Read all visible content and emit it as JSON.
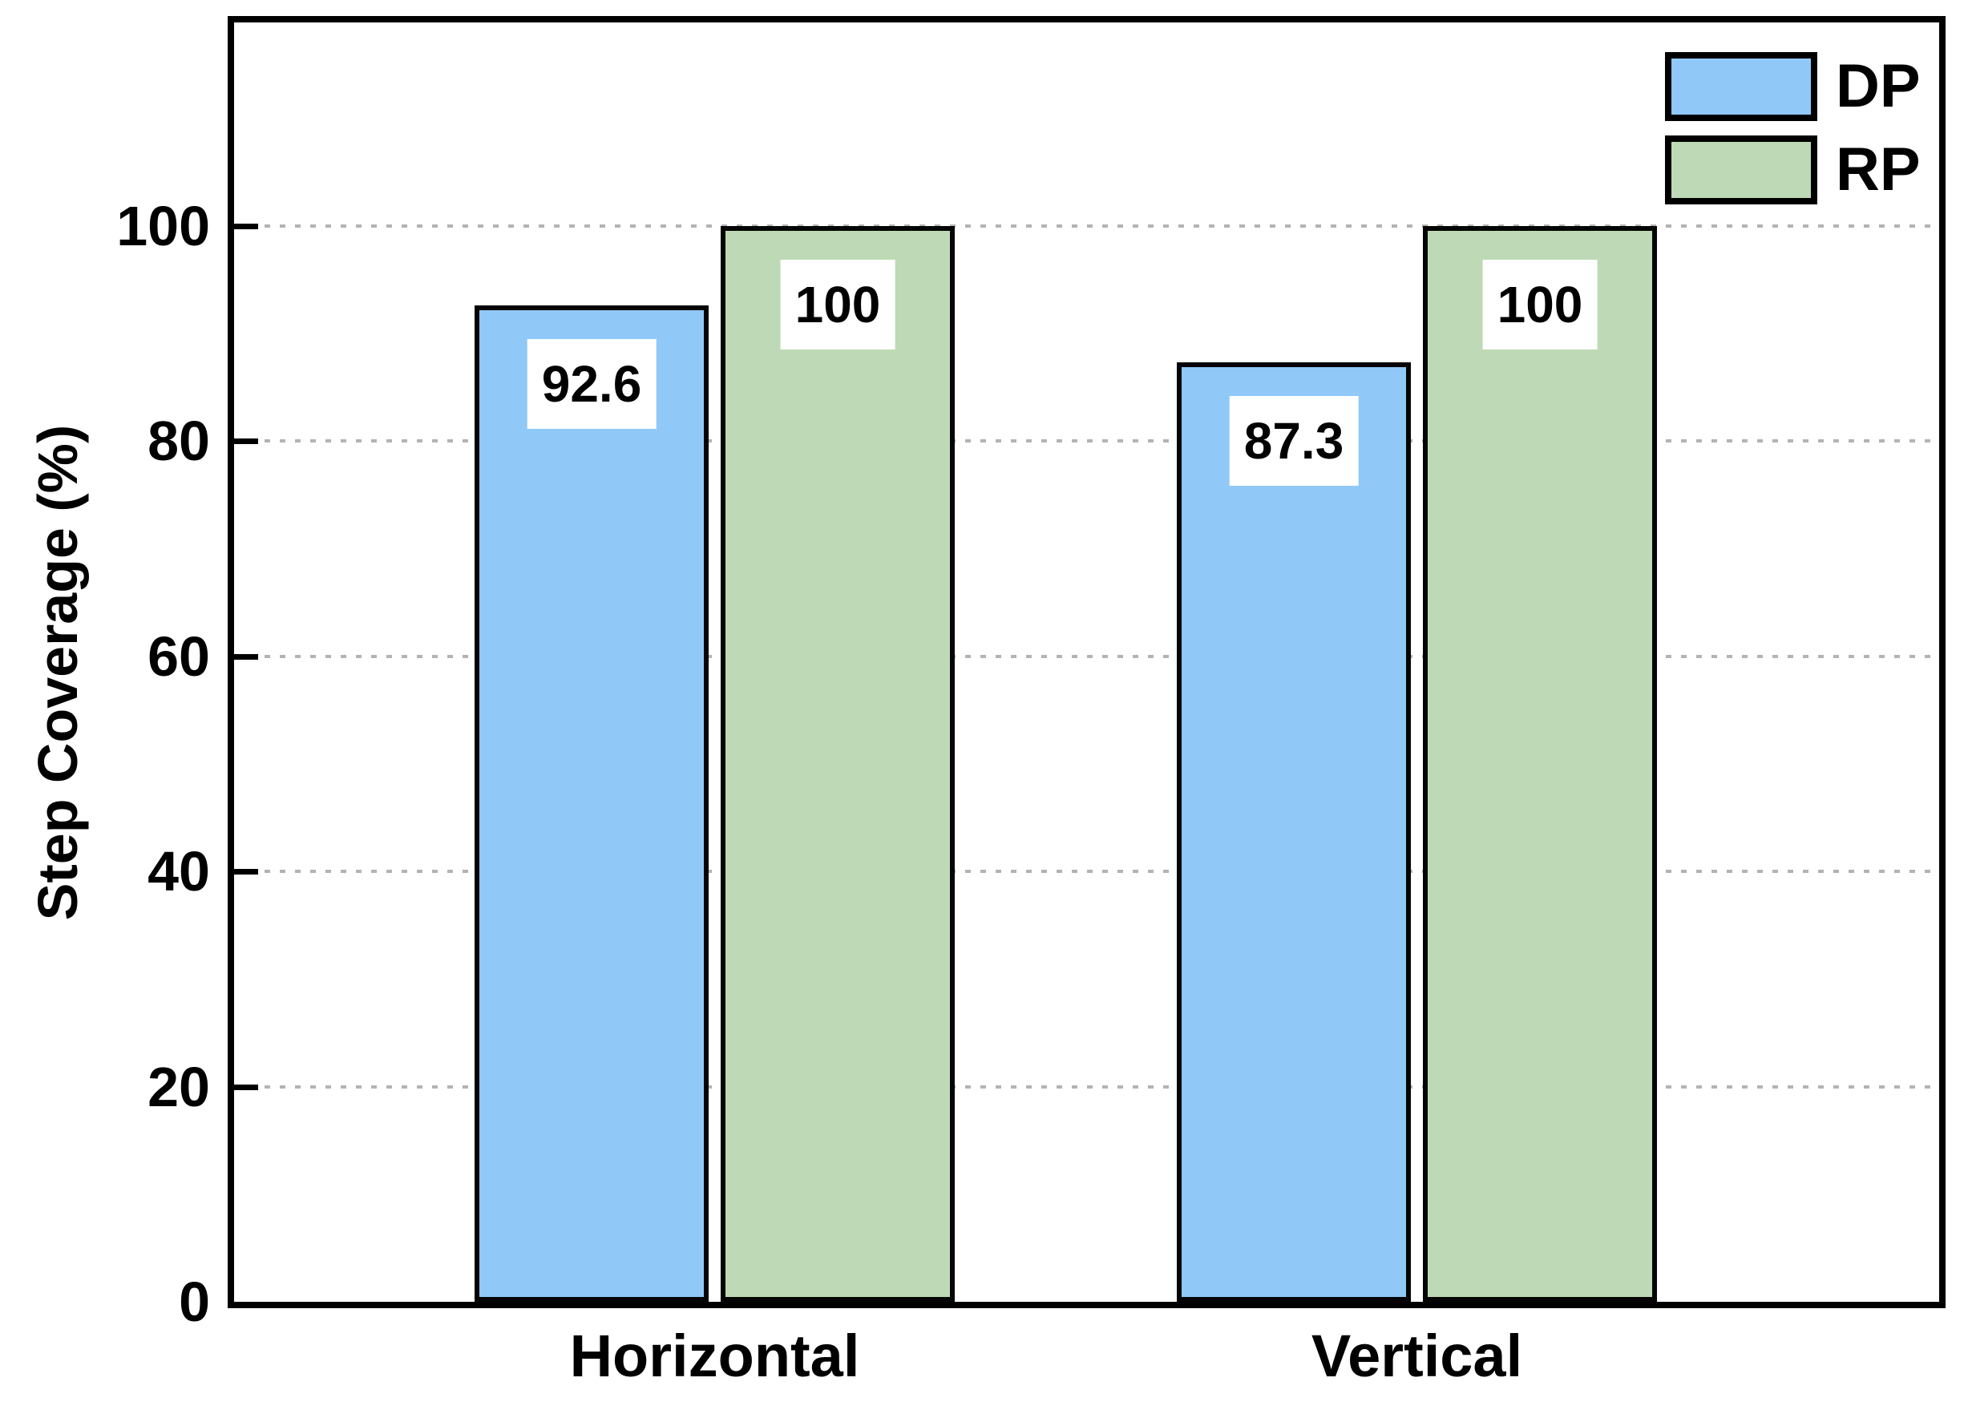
{
  "chart_data": {
    "type": "bar",
    "title": "",
    "ylabel": "Step Coverage (%)",
    "xlabel": "",
    "categories": [
      "Horizontal",
      "Vertical"
    ],
    "series": [
      {
        "name": "DP",
        "color": "#90C8F8",
        "values": [
          92.6,
          87.3
        ],
        "value_labels": [
          "92.6",
          "87.3"
        ]
      },
      {
        "name": "RP",
        "color": "#BDD9B5",
        "values": [
          100,
          100
        ],
        "value_labels": [
          "100",
          "100"
        ]
      }
    ],
    "yticks": [
      0,
      20,
      40,
      60,
      80,
      100
    ],
    "ytick_labels": [
      "0",
      "20",
      "40",
      "60",
      "80",
      "100"
    ],
    "ylim": [
      0,
      119
    ],
    "grid": "horizontal dashed gray lines at y ticks",
    "legend_position": "top-right inside plot",
    "colors": {
      "bar_border": "#050505",
      "frame": "#000000",
      "grid_line": "#b3b3b3",
      "value_label_bg": "#ffffff",
      "text": "#000000",
      "background": "#ffffff"
    }
  }
}
